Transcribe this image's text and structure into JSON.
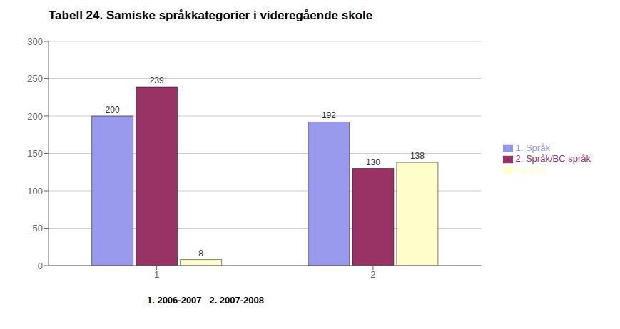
{
  "chart_data": {
    "type": "bar",
    "title": "Tabell 24. Samiske språkkategorier i videregående skole",
    "xlabel": "1. 2006-2007   2. 2007-2008",
    "categories": [
      "1",
      "2"
    ],
    "series": [
      {
        "name": "1. Språk",
        "values": [
          200,
          192
        ],
        "color": "#9999EE"
      },
      {
        "name": "2. Språk/BC språk",
        "values": [
          239,
          130
        ],
        "color": "#993366"
      },
      {
        "name": "Valgfag",
        "values": [
          8,
          138
        ],
        "color": "#FFFFCC"
      }
    ],
    "ylim": [
      0,
      300
    ],
    "yticks": [
      0,
      50,
      100,
      150,
      200,
      250,
      300
    ],
    "grid": true,
    "legend": "right",
    "data_labels": true
  }
}
